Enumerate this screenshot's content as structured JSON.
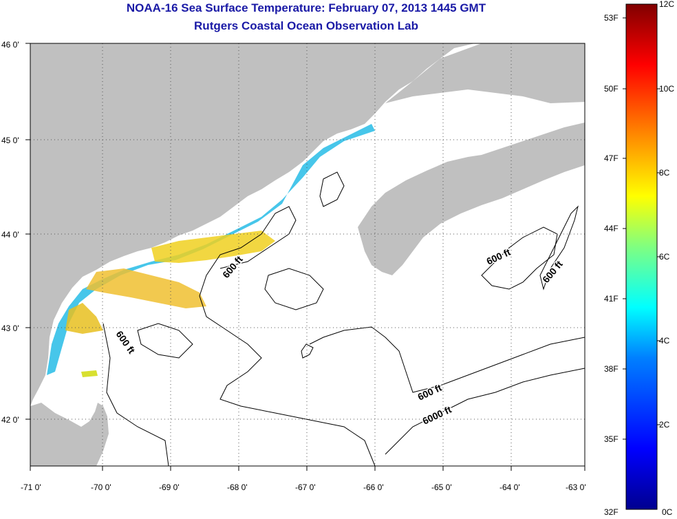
{
  "title": {
    "line1": "NOAA-16 Sea Surface Temperature:  February 07, 2013 1445 GMT",
    "line2": "Rutgers Coastal Ocean Observation Lab"
  },
  "map": {
    "lon_ticks": [
      "-71 0'",
      "-70 0'",
      "-69 0'",
      "-68 0'",
      "-67 0'",
      "-66 0'",
      "-65 0'",
      "-64 0'",
      "-63 0'"
    ],
    "lat_ticks": [
      "46 0'",
      "45 0'",
      "44 0'",
      "43 0'",
      "42 0'"
    ],
    "lon_range": [
      -71,
      -63
    ],
    "lat_range": [
      41.5,
      46
    ],
    "grid": "dotted",
    "land_color": "#c0c0c0",
    "ocean_color": "#ffffff",
    "contour_labels": {
      "c1": "600 ft",
      "c2": "600 ft",
      "c3": "600 ft",
      "c4": "600 ft",
      "c5": "600 ft",
      "c6": "6000 ft"
    }
  },
  "colorbar": {
    "fahrenheit": [
      "53F",
      "50F",
      "47F",
      "44F",
      "41F",
      "38F",
      "35F",
      "32F"
    ],
    "celsius": [
      "12C",
      "10C",
      "8C",
      "6C",
      "4C",
      "2C",
      "0C"
    ],
    "range_c": [
      0,
      12
    ],
    "colors": [
      "#00008f",
      "#0000ff",
      "#0080ff",
      "#00ffff",
      "#80ff80",
      "#ffff00",
      "#ff8000",
      "#ff0000",
      "#800000"
    ]
  }
}
